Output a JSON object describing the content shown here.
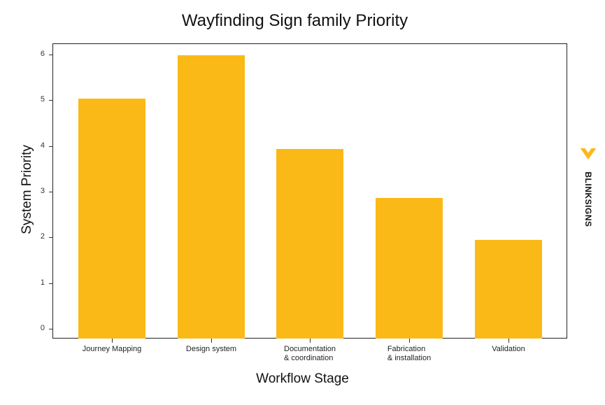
{
  "chart_data": {
    "type": "bar",
    "title": "Wayfinding Sign family Priority",
    "xlabel": "Workflow Stage",
    "ylabel": "System Priority",
    "categories": [
      "Journey Mapping",
      "Design system",
      "Documentation\n& coordination",
      "Fabrication\n& installation",
      "Validation"
    ],
    "values": [
      5.03,
      5.98,
      3.94,
      2.87,
      1.94
    ],
    "ylim": [
      -0.2,
      6.25
    ],
    "yticks": [
      0,
      1,
      2,
      3,
      4,
      5,
      6
    ],
    "grid": false,
    "legend": null,
    "bar_color": "#fbb917"
  },
  "brand": {
    "name": "BLINKSIGNS",
    "accent": "#fbb917"
  }
}
